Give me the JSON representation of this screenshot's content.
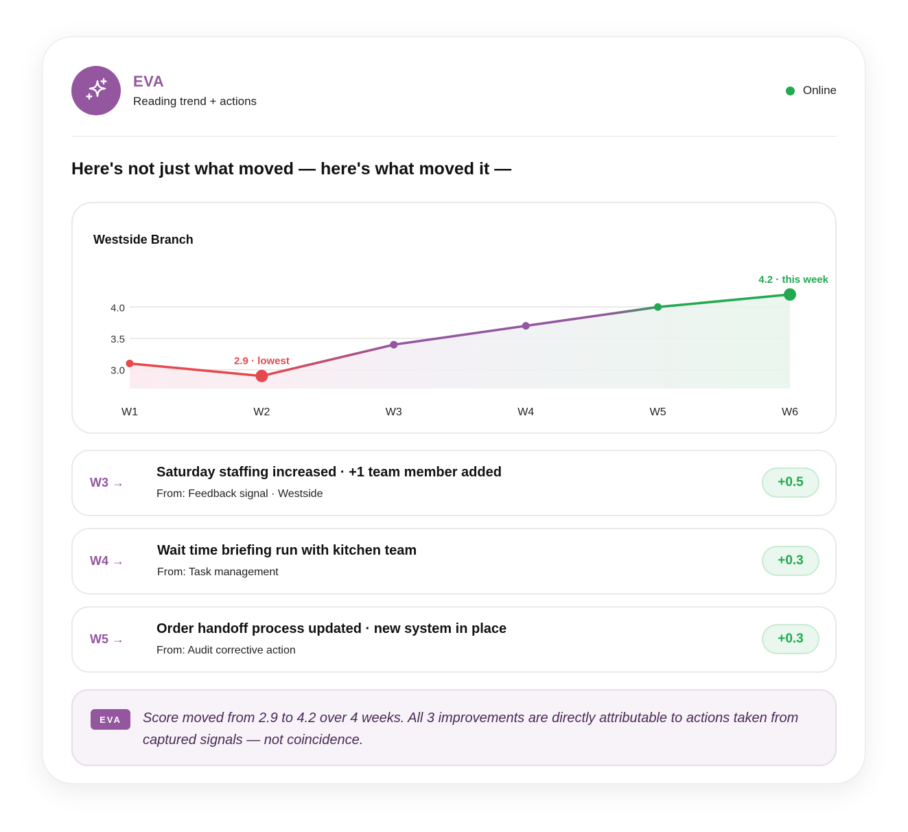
{
  "agent": {
    "name": "EVA",
    "subtitle": "Reading trend + actions",
    "status": "Online",
    "avatar_icon": "sparkles-icon"
  },
  "headline": "Here's not just what moved — here's what moved it —",
  "colors": {
    "accent": "#93569f",
    "positive": "#22a94f",
    "negative": "#e5484d"
  },
  "chart_data": {
    "type": "line",
    "title": "Westside Branch",
    "categories": [
      "W1",
      "W2",
      "W3",
      "W4",
      "W5",
      "W6"
    ],
    "values": [
      3.1,
      2.9,
      3.4,
      3.7,
      4.0,
      4.2
    ],
    "y_ticks": [
      "3.0",
      "3.5",
      "4.0"
    ],
    "ylim": [
      2.7,
      4.2
    ],
    "grid": true,
    "annotations": [
      {
        "x": "W2",
        "label": "2.9 · lowest",
        "color": "#e5484d"
      },
      {
        "x": "W6",
        "label": "4.2 · this week",
        "color": "#22a94f"
      }
    ]
  },
  "actions": [
    {
      "week": "W3 →",
      "title": "Saturday staffing increased · +1 team member added",
      "source": "From: Feedback signal · Westside",
      "delta": "+0.5"
    },
    {
      "week": "W4 →",
      "title": "Wait time briefing run with kitchen team",
      "source": "From: Task management",
      "delta": "+0.3"
    },
    {
      "week": "W5 →",
      "title": "Order handoff process updated · new system in place",
      "source": "From: Audit corrective action",
      "delta": "+0.3"
    }
  ],
  "summary": {
    "tag": "EVA",
    "text": "Score moved from 2.9 to 4.2 over 4 weeks. All 3 improvements are directly attributable to actions taken from captured signals — not coincidence."
  }
}
